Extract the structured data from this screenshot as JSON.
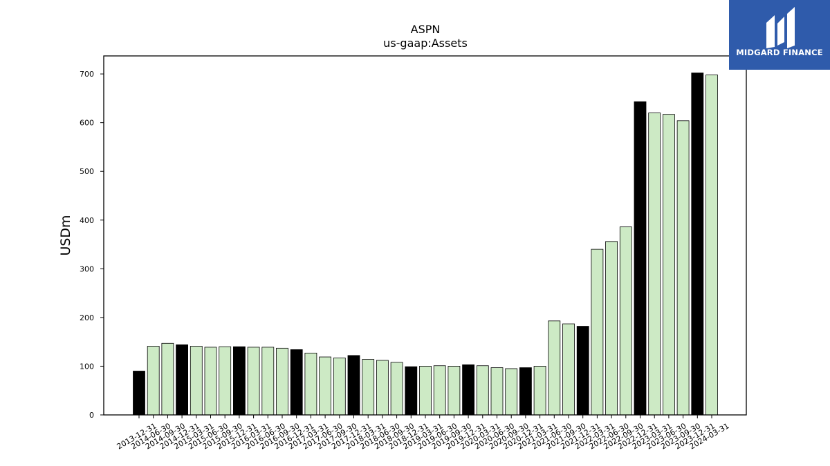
{
  "chart_data": {
    "type": "bar",
    "title": "ASPN",
    "subtitle": "us-gaap:Assets",
    "ylabel": "USDm",
    "ylim": [
      0,
      737
    ],
    "yticks": [
      0,
      100,
      200,
      300,
      400,
      500,
      600,
      700
    ],
    "colors": {
      "highlight": "#000000",
      "normal": "#cdeac5",
      "edge": "#000000"
    },
    "categories": [
      "2013-12-31",
      "2014-06-30",
      "2014-09-30",
      "2014-12-31",
      "2015-03-31",
      "2015-06-30",
      "2015-09-30",
      "2015-12-31",
      "2016-03-31",
      "2016-06-30",
      "2016-09-30",
      "2016-12-31",
      "2017-03-31",
      "2017-06-30",
      "2017-09-30",
      "2017-12-31",
      "2018-03-31",
      "2018-06-30",
      "2018-09-30",
      "2018-12-31",
      "2019-03-31",
      "2019-06-30",
      "2019-09-30",
      "2019-12-31",
      "2020-03-31",
      "2020-06-30",
      "2020-09-30",
      "2020-12-31",
      "2021-03-31",
      "2021-06-30",
      "2021-09-30",
      "2021-12-31",
      "2022-03-31",
      "2022-06-30",
      "2022-09-30",
      "2022-12-31",
      "2023-03-31",
      "2023-06-30",
      "2023-09-30",
      "2023-12-31",
      "2024-03-31"
    ],
    "values": [
      90,
      141,
      147,
      144,
      141,
      139,
      140,
      140,
      139,
      139,
      137,
      134,
      127,
      119,
      117,
      122,
      114,
      112,
      108,
      99,
      100,
      101,
      100,
      103,
      101,
      97,
      95,
      97,
      100,
      193,
      187,
      182,
      340,
      356,
      386,
      643,
      620,
      617,
      604,
      702,
      698
    ],
    "highlight": [
      true,
      false,
      false,
      true,
      false,
      false,
      false,
      true,
      false,
      false,
      false,
      true,
      false,
      false,
      false,
      true,
      false,
      false,
      false,
      true,
      false,
      false,
      false,
      true,
      false,
      false,
      false,
      true,
      false,
      false,
      false,
      true,
      false,
      false,
      false,
      true,
      false,
      false,
      false,
      true,
      false
    ]
  },
  "logo": {
    "text": "MIDGARD FINANCE",
    "background": "#2f5bab"
  }
}
